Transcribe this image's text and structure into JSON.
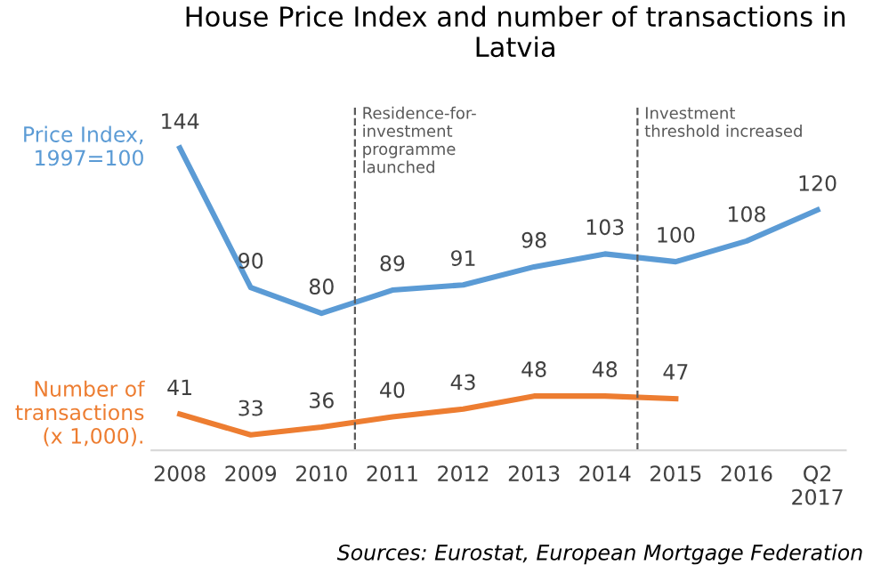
{
  "chart_data": {
    "type": "line",
    "title": "House Price Index and number of transactions in\nLatvia",
    "categories": [
      "2008",
      "2009",
      "2010",
      "2011",
      "2012",
      "2013",
      "2014",
      "2015",
      "2016",
      "Q2\n2017"
    ],
    "series": [
      {
        "name": "Price Index,\n1997=100",
        "color": "#5b9bd5",
        "values": [
          144,
          90,
          80,
          89,
          91,
          98,
          103,
          100,
          108,
          120
        ]
      },
      {
        "name": "Number of\ntransactions\n(x 1,000).",
        "color": "#ed7d31",
        "values": [
          41,
          33,
          36,
          40,
          43,
          48,
          48,
          47,
          null,
          null
        ]
      }
    ],
    "ylim": [
      27,
      160
    ],
    "tick_labels": "x",
    "data_labels": true,
    "grid": false,
    "legend": false,
    "marker": "none",
    "line_style": "solid",
    "annotations": [
      "Residence-for-\ninvestment\nprogramme\nlaunched",
      "Investment\nthreshold increased",
      "Sources: Eurostat, European Mortgage Federation"
    ]
  }
}
